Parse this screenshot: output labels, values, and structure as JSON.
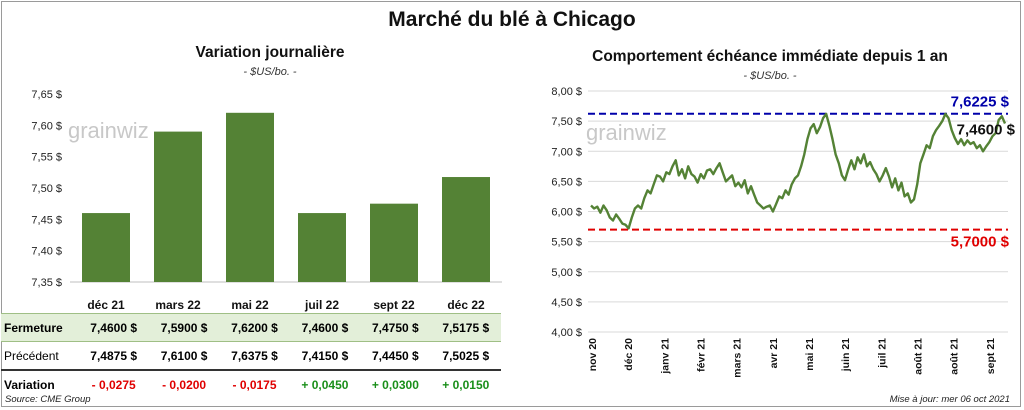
{
  "header": {
    "title": "Marché du blé à Chicago"
  },
  "left_chart": {
    "title": "Variation  journalière",
    "subtitle": "- $US/bo. -"
  },
  "right_chart": {
    "title": "Comportement  échéance immédiate depuis 1 an",
    "subtitle": "- $US/bo. -"
  },
  "watermark": "grainwiz",
  "table": {
    "rows": [
      {
        "label": "Fermeture",
        "values": [
          "7,4600  $",
          "7,5900  $",
          "7,6200  $",
          "7,4600  $",
          "7,4750  $",
          "7,5175  $"
        ]
      },
      {
        "label": "Précédent",
        "values": [
          "7,4875  $",
          "7,6100  $",
          "7,6375  $",
          "7,4150  $",
          "7,4450  $",
          "7,5025  $"
        ]
      },
      {
        "label": "Variation",
        "values": [
          "- 0,0275",
          "- 0,0200",
          "- 0,0175",
          "+ 0,0450",
          "+ 0,0300",
          "+ 0,0150"
        ]
      }
    ]
  },
  "footer": {
    "source": "Source: CME Group",
    "updated": "Mise à jour: mer 06 oct 2021"
  },
  "colors": {
    "bar": "#548235",
    "line": "#548235",
    "max_line": "#0000aa",
    "min_line": "#e00000",
    "negative": "#e00000",
    "positive": "#1a8f1a"
  },
  "chart_data": [
    {
      "type": "bar",
      "title": "Variation  journalière",
      "subtitle": "- $US/bo. -",
      "categories": [
        "déc 21",
        "mars 22",
        "mai 22",
        "juil 22",
        "sept 22",
        "déc 22"
      ],
      "values": [
        7.46,
        7.59,
        7.62,
        7.46,
        7.475,
        7.5175
      ],
      "ylim": [
        7.35,
        7.65
      ],
      "yticks": [
        "7,35 $",
        "7,40 $",
        "7,45 $",
        "7,50 $",
        "7,55 $",
        "7,60 $",
        "7,65 $"
      ],
      "grid": false
    },
    {
      "type": "line",
      "title": "Comportement  échéance immédiate depuis 1 an",
      "subtitle": "- $US/bo. -",
      "x_labels": [
        "nov 20",
        "déc 20",
        "janv 21",
        "févr 21",
        "mars 21",
        "avr 21",
        "mai 21",
        "juin 21",
        "juil 21",
        "août 21",
        "août 21",
        "sept 21"
      ],
      "yticks": [
        "4,00 $",
        "4,50 $",
        "5,00 $",
        "5,50 $",
        "6,00 $",
        "6,50 $",
        "7,00 $",
        "7,50 $",
        "8,00 $"
      ],
      "ylim": [
        4.0,
        8.0
      ],
      "series": [
        {
          "values": [
            6.1,
            6.05,
            6.08,
            5.98,
            6.1,
            6.02,
            5.9,
            5.85,
            5.95,
            5.88,
            5.8,
            5.78,
            5.72,
            5.9,
            6.05,
            6.1,
            6.05,
            6.22,
            6.35,
            6.3,
            6.45,
            6.6,
            6.58,
            6.5,
            6.65,
            6.62,
            6.75,
            6.85,
            6.6,
            6.7,
            6.55,
            6.75,
            6.62,
            6.58,
            6.48,
            6.62,
            6.55,
            6.68,
            6.7,
            6.62,
            6.72,
            6.8,
            6.65,
            6.5,
            6.55,
            6.6,
            6.42,
            6.48,
            6.4,
            6.52,
            6.3,
            6.42,
            6.28,
            6.15,
            6.1,
            6.05,
            6.08,
            6.1,
            6.0,
            6.12,
            6.25,
            6.22,
            6.35,
            6.28,
            6.45,
            6.55,
            6.6,
            6.75,
            6.95,
            7.2,
            7.38,
            7.45,
            7.3,
            7.4,
            7.55,
            7.62,
            7.42,
            7.2,
            6.95,
            6.8,
            6.6,
            6.52,
            6.7,
            6.85,
            6.7,
            6.9,
            6.8,
            6.95,
            6.75,
            6.82,
            6.7,
            6.62,
            6.5,
            6.6,
            6.72,
            6.58,
            6.4,
            6.55,
            6.35,
            6.48,
            6.25,
            6.3,
            6.15,
            6.2,
            6.45,
            6.8,
            6.95,
            7.1,
            7.05,
            7.25,
            7.35,
            7.42,
            7.5,
            7.62,
            7.55,
            7.35,
            7.22,
            7.12,
            7.2,
            7.1,
            7.18,
            7.12,
            7.15,
            7.05,
            7.1,
            7.0,
            7.08,
            7.15,
            7.25,
            7.3,
            7.52,
            7.58,
            7.46
          ]
        },
        {
          "name": "7,6225 $",
          "values": [
            7.6225
          ]
        },
        {
          "name": "5,7000 $",
          "values": [
            5.7
          ]
        },
        {
          "name": "7,4600 $",
          "values": [
            7.46
          ]
        }
      ],
      "annotations": [
        "7,6225 $",
        "5,7000 $",
        "7,4600 $"
      ],
      "grid": true
    }
  ]
}
